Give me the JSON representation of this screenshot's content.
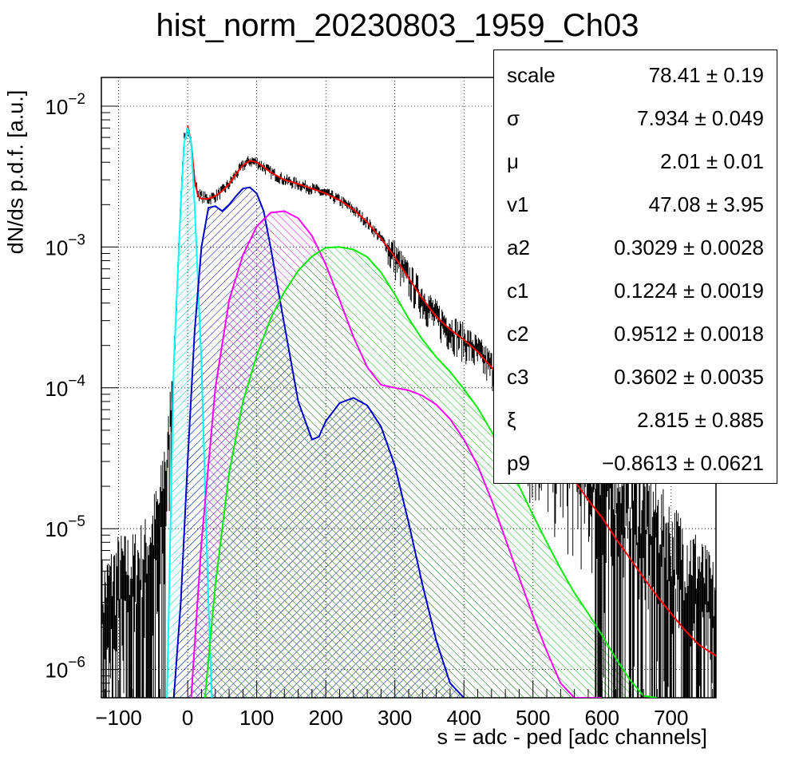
{
  "chart_data": {
    "type": "line",
    "title": "hist_norm_20230803_1959_Ch03",
    "xlabel": "s = adc - ped [adc channels]",
    "ylabel": "dN/ds p.d.f. [a.u.]",
    "xlim": [
      -125,
      765
    ],
    "ylim": [
      6.3e-07,
      0.016
    ],
    "yscale": "log",
    "grid": true,
    "x_ticks": [
      -100,
      0,
      100,
      200,
      300,
      400,
      500,
      600,
      700
    ],
    "x_tick_labels": [
      "−100",
      "0",
      "100",
      "200",
      "300",
      "400",
      "500",
      "600",
      "700"
    ],
    "y_ticks": [
      {
        "mantissa": "10",
        "exp": "−2",
        "value": 0.01
      },
      {
        "mantissa": "10",
        "exp": "−3",
        "value": 0.001
      },
      {
        "mantissa": "10",
        "exp": "−4",
        "value": 0.0001
      },
      {
        "mantissa": "10",
        "exp": "−5",
        "value": 1e-05
      },
      {
        "mantissa": "10",
        "exp": "−6",
        "value": 1e-06
      }
    ],
    "series": [
      {
        "color": "#000000",
        "style": "histogram",
        "x": [
          -120,
          -100,
          -80,
          -60,
          -40,
          -30,
          -20,
          -15,
          -10,
          -5,
          0,
          5,
          10,
          15,
          20,
          30,
          40,
          50,
          60,
          70,
          80,
          90,
          100,
          110,
          120,
          130,
          140,
          150,
          160,
          180,
          200,
          220,
          240,
          260,
          280,
          300,
          320,
          340,
          360,
          380,
          400,
          420,
          440,
          460,
          480,
          500,
          520,
          540,
          560,
          580,
          600,
          620,
          640,
          660,
          680,
          700,
          720,
          740,
          760
        ],
        "y": [
          2e-06,
          3e-06,
          3e-06,
          4e-06,
          8e-06,
          2.5e-05,
          0.00015,
          0.0006,
          0.0022,
          0.006,
          0.0072,
          0.0055,
          0.003,
          0.0024,
          0.0023,
          0.0022,
          0.0023,
          0.0025,
          0.0028,
          0.0033,
          0.0038,
          0.0041,
          0.004,
          0.0037,
          0.0034,
          0.0032,
          0.003,
          0.0029,
          0.0028,
          0.0026,
          0.0024,
          0.00215,
          0.00185,
          0.0015,
          0.00115,
          0.00085,
          0.0006,
          0.00043,
          0.00032,
          0.00026,
          0.00022,
          0.00018,
          0.00014,
          0.000105,
          8e-05,
          6e-05,
          4.5e-05,
          3.5e-05,
          2.7e-05,
          2.2e-05,
          1.8e-05,
          1.5e-05,
          1.2e-05,
          9e-06,
          7e-06,
          5e-06,
          4e-06,
          3e-06,
          2e-06
        ]
      },
      {
        "color": "#ff0000",
        "style": "line",
        "x": [
          0,
          5,
          10,
          15,
          20,
          30,
          40,
          50,
          60,
          70,
          80,
          90,
          100,
          110,
          120,
          140,
          160,
          180,
          200,
          220,
          240,
          260,
          280,
          300,
          320,
          340,
          360,
          380,
          400,
          420,
          440,
          460,
          480,
          500,
          520,
          540,
          560,
          580,
          600,
          620,
          640,
          660,
          680,
          700,
          720,
          740,
          765
        ],
        "y": [
          0.0073,
          0.0055,
          0.003,
          0.0023,
          0.0022,
          0.0022,
          0.0023,
          0.0025,
          0.0028,
          0.0033,
          0.0038,
          0.0041,
          0.004,
          0.0037,
          0.0034,
          0.003,
          0.0028,
          0.0026,
          0.0024,
          0.00215,
          0.00185,
          0.0015,
          0.00115,
          0.00085,
          0.0006,
          0.00043,
          0.00032,
          0.00026,
          0.00022,
          0.00018,
          0.00014,
          0.00011,
          8e-05,
          6e-05,
          4.3e-05,
          3.1e-05,
          2.2e-05,
          1.6e-05,
          1.2e-05,
          8.5e-06,
          6.2e-06,
          4.5e-06,
          3.3e-06,
          2.5e-06,
          1.9e-06,
          1.5e-06,
          1.25e-06
        ]
      },
      {
        "color": "#00ffff",
        "style": "hatched",
        "x": [
          -30,
          -20,
          -10,
          -5,
          0,
          5,
          10,
          20,
          30,
          35
        ],
        "y": [
          6.3e-07,
          0.00015,
          0.002,
          0.0055,
          0.007,
          0.0055,
          0.002,
          0.00015,
          3e-06,
          6.3e-07
        ]
      },
      {
        "color": "#0000cc",
        "style": "hatched",
        "x": [
          -20,
          -10,
          0,
          10,
          20,
          30,
          40,
          50,
          60,
          70,
          80,
          90,
          100,
          110,
          120,
          140,
          160,
          180,
          190,
          200,
          220,
          240,
          260,
          280,
          300,
          320,
          340,
          360,
          380,
          400
        ],
        "y": [
          6.3e-07,
          3e-06,
          3e-05,
          0.00025,
          0.001,
          0.0019,
          0.00195,
          0.0018,
          0.002,
          0.0023,
          0.0026,
          0.00265,
          0.0024,
          0.0018,
          0.001,
          0.00028,
          8e-05,
          4.3e-05,
          4.5e-05,
          5.8e-05,
          7.8e-05,
          8.5e-05,
          7.5e-05,
          5.3e-05,
          2.8e-05,
          1.1e-05,
          4e-06,
          1.6e-06,
          8e-07,
          6.3e-07
        ]
      },
      {
        "color": "#ff00ff",
        "style": "hatched",
        "x": [
          5,
          20,
          40,
          60,
          80,
          100,
          120,
          140,
          160,
          180,
          200,
          220,
          240,
          260,
          280,
          300,
          320,
          340,
          360,
          380,
          400,
          420,
          440,
          460,
          480,
          500,
          520,
          540,
          560,
          580,
          600
        ],
        "y": [
          6.3e-07,
          8e-06,
          0.0001,
          0.00042,
          0.00088,
          0.0014,
          0.00175,
          0.0018,
          0.0016,
          0.0012,
          0.00075,
          0.00042,
          0.00023,
          0.00014,
          0.000105,
          0.0001,
          9.6e-05,
          8.8e-05,
          7.6e-05,
          6e-05,
          4.3e-05,
          2.8e-05,
          1.6e-05,
          8.5e-06,
          4.5e-06,
          2.4e-06,
          1.35e-06,
          8e-07,
          6.3e-07,
          6.3e-07,
          6.3e-07
        ]
      },
      {
        "color": "#00ee00",
        "style": "hatched",
        "x": [
          25,
          40,
          60,
          80,
          100,
          120,
          140,
          160,
          180,
          200,
          220,
          240,
          260,
          280,
          300,
          320,
          340,
          360,
          380,
          400,
          420,
          440,
          460,
          480,
          500,
          520,
          540,
          560,
          580,
          600,
          620,
          640,
          660,
          680
        ],
        "y": [
          6.3e-07,
          4e-06,
          2.5e-05,
          8e-05,
          0.00017,
          0.00031,
          0.00048,
          0.00068,
          0.00086,
          0.00099,
          0.001,
          0.00096,
          0.00085,
          0.00066,
          0.00046,
          0.00031,
          0.00022,
          0.000165,
          0.00013,
          9.8e-05,
          7.2e-05,
          4.9e-05,
          3.2e-05,
          2e-05,
          1.25e-05,
          8e-06,
          5.2e-06,
          3.5e-06,
          2.5e-06,
          1.75e-06,
          1.2e-06,
          8.5e-07,
          6.5e-07,
          6.3e-07
        ]
      }
    ]
  },
  "stats": [
    {
      "name": "scale",
      "value": "78.41 ± 0.19"
    },
    {
      "name": "σ",
      "value": "7.934 ± 0.049"
    },
    {
      "name": "μ",
      "value": "2.01 ± 0.01"
    },
    {
      "name": "v1",
      "value": "47.08 ± 3.95"
    },
    {
      "name": "a2",
      "value": "0.3029 ± 0.0028"
    },
    {
      "name": "c1",
      "value": "0.1224 ± 0.0019"
    },
    {
      "name": "c2",
      "value": "0.9512 ± 0.0018"
    },
    {
      "name": "c3",
      "value": "0.3602 ± 0.0035"
    },
    {
      "name": "ξ",
      "value": "2.815 ± 0.885"
    },
    {
      "name": "p9",
      "value": "−0.8613 ± 0.0621"
    }
  ]
}
